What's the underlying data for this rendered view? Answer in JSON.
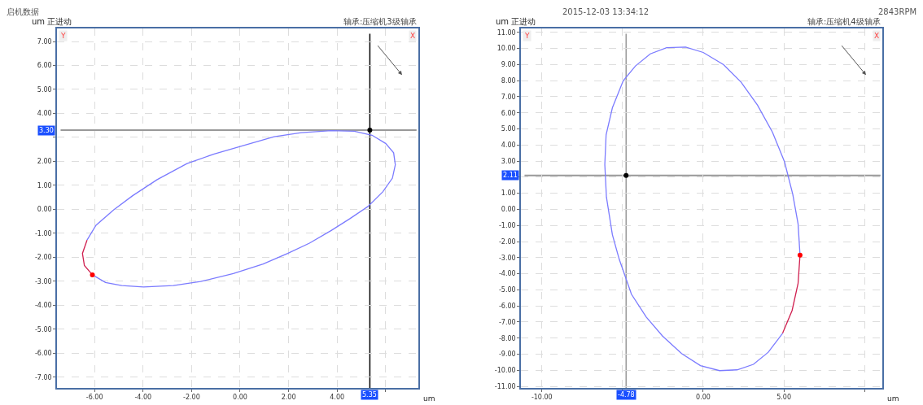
{
  "chart_data": [
    {
      "type": "line",
      "title": "轴承:压缩机3级轴承",
      "ylabel": "um 正进动",
      "xlabel": "um",
      "annotations": [
        "启机数据",
        "2015-12-03 13:34:12",
        "Y",
        "X"
      ],
      "xlim": [
        -7.55,
        7.35
      ],
      "ylim": [
        -7.45,
        7.55
      ],
      "xticks": [
        {
          "value": -6,
          "label": "-6.00"
        },
        {
          "value": -4,
          "label": "-4.00"
        },
        {
          "value": -2,
          "label": "-2.00"
        },
        {
          "value": 0,
          "label": "0.00"
        },
        {
          "value": 2,
          "label": "2.00"
        },
        {
          "value": 4,
          "label": "4.00"
        },
        {
          "value": 6,
          "label": null
        }
      ],
      "yticks": [
        {
          "value": -7,
          "label": "-7.00"
        },
        {
          "value": -6,
          "label": "-6.00"
        },
        {
          "value": -5,
          "label": "-5.00"
        },
        {
          "value": -4,
          "label": "-4.00"
        },
        {
          "value": -3,
          "label": "-3.00"
        },
        {
          "value": -2,
          "label": "-2.00"
        },
        {
          "value": -1,
          "label": "-1.00"
        },
        {
          "value": 0,
          "label": "0.00"
        },
        {
          "value": 1,
          "label": "1.00"
        },
        {
          "value": 2,
          "label": "2.00"
        },
        {
          "value": 3,
          "label": null
        },
        {
          "value": 4,
          "label": "4.00"
        },
        {
          "value": 5,
          "label": "5.00"
        },
        {
          "value": 6,
          "label": "6.00"
        },
        {
          "value": 7,
          "label": "7.00"
        }
      ],
      "grid": true,
      "marker": "none",
      "line_style": "solid",
      "ref_lines": [
        {
          "axis": "x",
          "value": 5.35,
          "label": "5.35",
          "color": "#000000"
        },
        {
          "axis": "y",
          "value": 3.3,
          "label": "3.30",
          "color": "#999999"
        }
      ],
      "series": [
        {
          "color": "#7b7bff",
          "x": [
            -6.09,
            -5.55,
            -4.88,
            -3.98,
            -2.75,
            -1.63,
            -0.28,
            0.95,
            1.96,
            2.86,
            3.76,
            4.54,
            5.27,
            5.89,
            6.28,
            6.4,
            6.33,
            6.0,
            5.44,
            4.71,
            3.76,
            2.52,
            1.4,
            0.06,
            -1.07,
            -2.19,
            -3.42,
            -4.43,
            -5.21,
            -5.94,
            -6.31
          ],
          "values": [
            -2.73,
            -3.05,
            -3.18,
            -3.24,
            -3.18,
            -3.01,
            -2.68,
            -2.28,
            -1.84,
            -1.41,
            -0.88,
            -0.38,
            0.12,
            0.74,
            1.3,
            1.86,
            2.36,
            2.75,
            3.09,
            3.26,
            3.28,
            3.2,
            3.03,
            2.64,
            2.31,
            1.91,
            1.24,
            0.57,
            -0.02,
            -0.66,
            -1.28
          ]
        },
        {
          "color": "#d02050",
          "x": [
            -6.31,
            -6.5,
            -6.42,
            -6.09
          ],
          "values": [
            -1.28,
            -1.84,
            -2.34,
            -2.73
          ]
        },
        {
          "type": "scatter",
          "marker": "circle",
          "color": "#ff0000",
          "x": [
            -6.09
          ],
          "values": [
            -2.73
          ]
        },
        {
          "type": "scatter",
          "marker": "circle",
          "color": "#000000",
          "x": [
            5.35
          ],
          "values": [
            3.3
          ]
        }
      ]
    },
    {
      "type": "line",
      "title": "轴承:压缩机4级轴承",
      "ylabel": "um 正进动",
      "xlabel": "um",
      "annotations": [
        "2843RPM",
        "Y",
        "X"
      ],
      "xlim": [
        -11.3,
        11.1
      ],
      "ylim": [
        -11.1,
        11.25
      ],
      "xticks": [
        {
          "value": -10,
          "label": "-10.00"
        },
        {
          "value": -5,
          "label": null
        },
        {
          "value": 0,
          "label": "0.00"
        },
        {
          "value": 5,
          "label": "5.00"
        },
        {
          "value": 10,
          "label": null
        }
      ],
      "yticks": [
        {
          "value": -11,
          "label": "-11.00"
        },
        {
          "value": -10,
          "label": "-10.00"
        },
        {
          "value": -9,
          "label": "-9.00"
        },
        {
          "value": -8,
          "label": "-8.00"
        },
        {
          "value": -7,
          "label": "-7.00"
        },
        {
          "value": -6,
          "label": "-6.00"
        },
        {
          "value": -5,
          "label": "-5.00"
        },
        {
          "value": -4,
          "label": "-4.00"
        },
        {
          "value": -3,
          "label": "-3.00"
        },
        {
          "value": -2,
          "label": "-2.00"
        },
        {
          "value": -1,
          "label": "-1.00"
        },
        {
          "value": 0,
          "label": "0.00"
        },
        {
          "value": 1,
          "label": "1.00"
        },
        {
          "value": 2,
          "label": null
        },
        {
          "value": 3,
          "label": "3.00"
        },
        {
          "value": 4,
          "label": "4.00"
        },
        {
          "value": 5,
          "label": "5.00"
        },
        {
          "value": 6,
          "label": "6.00"
        },
        {
          "value": 7,
          "label": "7.00"
        },
        {
          "value": 8,
          "label": "8.00"
        },
        {
          "value": 9,
          "label": "9.00"
        },
        {
          "value": 10,
          "label": "10.00"
        },
        {
          "value": 11,
          "label": "11.00"
        }
      ],
      "grid": true,
      "marker": "none",
      "line_style": "solid",
      "ref_lines": [
        {
          "axis": "x",
          "value": -4.78,
          "label": "-4.78",
          "color": "#999999"
        },
        {
          "axis": "y",
          "value": 2.11,
          "label": "2.11",
          "color": "#999999"
        }
      ],
      "series": [
        {
          "color": "#7b7bff",
          "x": [
            4.92,
            4.03,
            3.11,
            2.1,
            1.01,
            -0.17,
            -1.34,
            -2.52,
            -3.53,
            -4.45,
            -5.21,
            -5.63,
            -6.0,
            -6.1,
            -6.02,
            -5.63,
            -4.96,
            -4.2,
            -3.28,
            -2.27,
            -1.09,
            0.0,
            1.26,
            2.35,
            3.36,
            4.29,
            5.04,
            5.55,
            5.88,
            6.0
          ],
          "values": [
            -7.7,
            -8.88,
            -9.63,
            -9.97,
            -10.02,
            -9.71,
            -8.96,
            -7.87,
            -6.69,
            -5.27,
            -3.09,
            -1.58,
            0.77,
            2.79,
            4.63,
            6.31,
            7.99,
            8.91,
            9.66,
            10.05,
            10.08,
            9.75,
            8.99,
            7.9,
            6.48,
            4.8,
            2.95,
            0.94,
            -0.91,
            -2.84
          ]
        },
        {
          "color": "#d02050",
          "x": [
            6.0,
            5.88,
            5.51,
            4.92
          ],
          "values": [
            -2.84,
            -4.6,
            -6.28,
            -7.7
          ]
        },
        {
          "type": "scatter",
          "marker": "circle",
          "color": "#ff0000",
          "x": [
            6.0
          ],
          "values": [
            -2.84
          ]
        },
        {
          "type": "scatter",
          "marker": "circle",
          "color": "#000000",
          "x": [
            -4.78
          ],
          "values": [
            2.11
          ]
        }
      ]
    }
  ]
}
